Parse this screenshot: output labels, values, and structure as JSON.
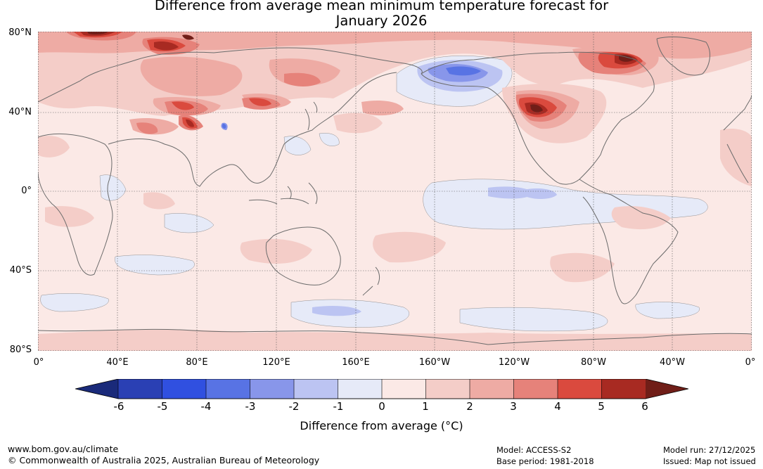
{
  "title": {
    "line1": "Difference from average mean minimum temperature forecast for",
    "line2": "January 2026"
  },
  "map": {
    "lat_labels": [
      "80°N",
      "40°N",
      "0°",
      "40°S",
      "80°S"
    ],
    "lon_labels": [
      "0°",
      "40°E",
      "80°E",
      "120°E",
      "160°E",
      "160°W",
      "120°W",
      "80°W",
      "40°W",
      "0°"
    ]
  },
  "colorbar": {
    "title": "Difference from average (°C)",
    "ticks": [
      "-6",
      "-5",
      "-4",
      "-3",
      "-2",
      "-1",
      "0",
      "1",
      "2",
      "3",
      "4",
      "5",
      "6"
    ],
    "colors": {
      "below_min": "#1a2a7a",
      "bins": [
        "#2a40b4",
        "#3050e0",
        "#5873e4",
        "#8896ea",
        "#bcc4f2",
        "#e6eaf8",
        "#fbe9e6",
        "#f4cdc8",
        "#eeaba4",
        "#e6827a",
        "#da4a3e",
        "#a82a22"
      ],
      "above_max": "#701e18"
    }
  },
  "footer": {
    "website": "www.bom.gov.au/climate",
    "copyright": "© Commonwealth of Australia 2025, Australian Bureau of Meteorology",
    "model": "Model: ACCESS-S2",
    "base_period": "Base period: 1981-2018",
    "model_run": "Model run: 27/12/2025",
    "issued": "Issued: Map not issued"
  }
}
